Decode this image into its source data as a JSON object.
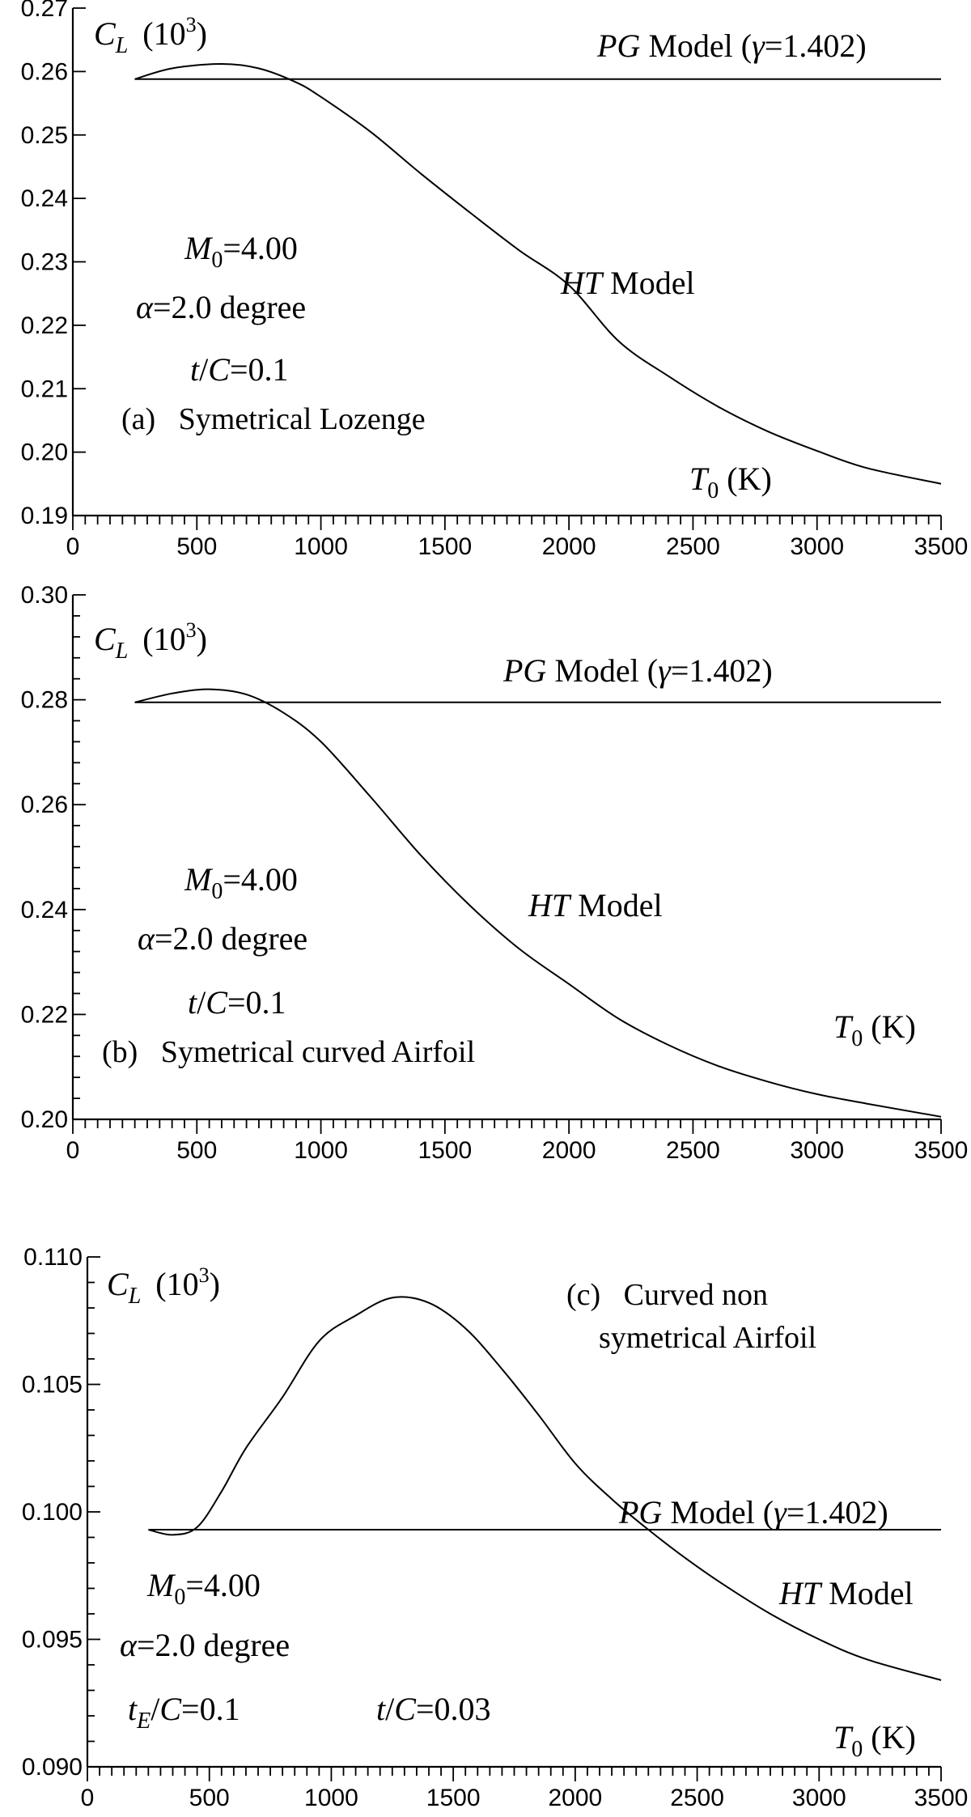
{
  "chart_data": [
    {
      "type": "line",
      "panel": "a",
      "xlim": [
        0,
        3500
      ],
      "ylim": [
        0.19,
        0.27
      ],
      "x_ticks": [
        0,
        500,
        1000,
        1500,
        2000,
        2500,
        3000,
        3500
      ],
      "y_ticks": [
        0.19,
        0.2,
        0.21,
        0.22,
        0.23,
        0.24,
        0.25,
        0.26,
        0.27
      ],
      "x_tick_labels": [
        "0",
        "500",
        "1000",
        "1500",
        "2000",
        "2500",
        "3000",
        "3500"
      ],
      "y_tick_labels": [
        "0.19",
        "0.20",
        "0.21",
        "0.22",
        "0.23",
        "0.24",
        "0.25",
        "0.26",
        "0.27"
      ],
      "grid": false,
      "ylabel": {
        "sym": "C",
        "sub": "L",
        "scale": "(10",
        "sup": "3",
        "close": ")"
      },
      "xlabel": {
        "sym": "T",
        "sub": "0",
        "unit": "(K)"
      },
      "series": [
        {
          "label_it": "PG",
          "label_rest": " Model (",
          "gamma_sym": "γ",
          "gamma_val": "=1.402)",
          "x": [
            250,
            3500
          ],
          "y": [
            0.2588,
            0.2588
          ]
        },
        {
          "label_it": "HT",
          "label_rest": "  Model",
          "x": [
            250,
            400,
            600,
            750,
            900,
            1000,
            1200,
            1400,
            1600,
            1800,
            2000,
            2200,
            2400,
            2600,
            2800,
            3000,
            3200,
            3500
          ],
          "y": [
            0.2588,
            0.2605,
            0.2612,
            0.2605,
            0.2583,
            0.256,
            0.2505,
            0.244,
            0.2378,
            0.2318,
            0.2263,
            0.2175,
            0.212,
            0.2072,
            0.2033,
            0.2002,
            0.1975,
            0.195
          ]
        }
      ],
      "annotations": {
        "mach": {
          "sym": "M",
          "sub": "0",
          "val": "=4.00"
        },
        "alpha": {
          "sym": "α",
          "val": "=2.0 degree"
        },
        "thick": {
          "sym": "t",
          "slash": "/",
          "sym2": "C",
          "val": "=0.1"
        },
        "caption": "(a)   Symetrical Lozenge"
      }
    },
    {
      "type": "line",
      "panel": "b",
      "xlim": [
        0,
        3500
      ],
      "ylim": [
        0.2,
        0.3
      ],
      "x_ticks": [
        0,
        500,
        1000,
        1500,
        2000,
        2500,
        3000,
        3500
      ],
      "y_ticks": [
        0.2,
        0.22,
        0.24,
        0.26,
        0.28,
        0.3
      ],
      "x_tick_labels": [
        "0",
        "500",
        "1000",
        "1500",
        "2000",
        "2500",
        "3000",
        "3500"
      ],
      "y_tick_labels": [
        "0.20",
        "0.22",
        "0.24",
        "0.26",
        "0.28",
        "0.30"
      ],
      "grid": false,
      "ylabel": {
        "sym": "C",
        "sub": "L",
        "scale": "(10",
        "sup": "3",
        "close": ")"
      },
      "xlabel": {
        "sym": "T",
        "sub": "0",
        "unit": "(K)"
      },
      "series": [
        {
          "label_it": "PG",
          "label_rest": " Model (",
          "gamma_sym": "γ",
          "gamma_val": "=1.402)",
          "x": [
            250,
            3500
          ],
          "y": [
            0.2795,
            0.2795
          ]
        },
        {
          "label_it": "HT",
          "label_rest": "  Model",
          "x": [
            250,
            400,
            550,
            700,
            850,
            1000,
            1200,
            1400,
            1600,
            1800,
            2000,
            2200,
            2400,
            2600,
            2800,
            3000,
            3200,
            3500
          ],
          "y": [
            0.2795,
            0.2812,
            0.282,
            0.281,
            0.2775,
            0.272,
            0.2615,
            0.2505,
            0.2408,
            0.2325,
            0.2258,
            0.2192,
            0.2142,
            0.2102,
            0.2072,
            0.2048,
            0.203,
            0.2005
          ]
        }
      ],
      "annotations": {
        "mach": {
          "sym": "M",
          "sub": "0",
          "val": "=4.00"
        },
        "alpha": {
          "sym": "α",
          "val": "=2.0 degree"
        },
        "thick": {
          "sym": "t",
          "slash": "/",
          "sym2": "C",
          "val": "=0.1"
        },
        "caption": "(b)   Symetrical curved Airfoil"
      }
    },
    {
      "type": "line",
      "panel": "c",
      "xlim": [
        0,
        3500
      ],
      "ylim": [
        0.09,
        0.11
      ],
      "x_ticks": [
        0,
        500,
        1000,
        1500,
        2000,
        2500,
        3000,
        3500
      ],
      "y_ticks": [
        0.09,
        0.095,
        0.1,
        0.105,
        0.11
      ],
      "x_tick_labels": [
        "0",
        "500",
        "1000",
        "1500",
        "2000",
        "2500",
        "3000",
        "3500"
      ],
      "y_tick_labels": [
        "0.090",
        "0.095",
        "0.100",
        "0.105",
        "0.110"
      ],
      "grid": false,
      "ylabel": {
        "sym": "C",
        "sub": "L",
        "scale": "(10",
        "sup": "3",
        "close": ")"
      },
      "xlabel": {
        "sym": "T",
        "sub": "0",
        "unit": "(K)"
      },
      "series": [
        {
          "label_it": "PG",
          "label_rest": " Model (",
          "gamma_sym": "γ",
          "gamma_val": "=1.402)",
          "x": [
            250,
            3500
          ],
          "y": [
            0.0993,
            0.0993
          ]
        },
        {
          "label_it": "HT",
          "label_rest": "  Model",
          "x": [
            250,
            350,
            450,
            550,
            650,
            800,
            950,
            1100,
            1250,
            1400,
            1550,
            1700,
            1850,
            2000,
            2150,
            2300,
            2450,
            2600,
            2800,
            3000,
            3200,
            3500
          ],
          "y": [
            0.0993,
            0.0991,
            0.0994,
            0.1008,
            0.1025,
            0.1045,
            0.1067,
            0.1077,
            0.1084,
            0.1082,
            0.1072,
            0.1056,
            0.1038,
            0.1019,
            0.1005,
            0.0993,
            0.0982,
            0.0972,
            0.096,
            0.095,
            0.0942,
            0.0934
          ]
        }
      ],
      "annotations": {
        "mach": {
          "sym": "M",
          "sub": "0",
          "val": "=4.00"
        },
        "alpha": {
          "sym": "α",
          "val": "=2.0 degree"
        },
        "edge": {
          "sym": "t",
          "sub": "E",
          "slash": "/",
          "sym2": "C",
          "val": "=0.1"
        },
        "thick": {
          "sym": "t",
          "slash": "/",
          "sym2": "C",
          "val": "=0.03"
        },
        "caption_line1": "(c)   Curved non",
        "caption_line2": "symetrical Airfoil"
      }
    }
  ]
}
